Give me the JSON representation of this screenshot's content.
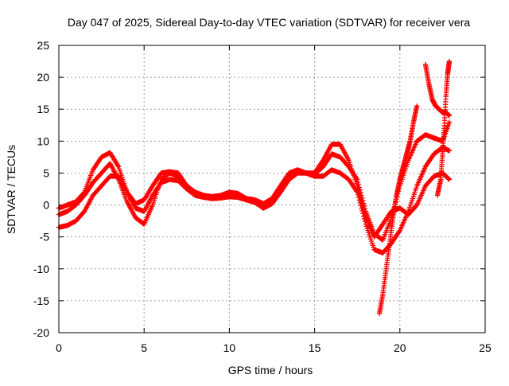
{
  "chart_data": {
    "type": "scatter",
    "title": "Day 047 of 2025, Sidereal Day-to-day VTEC variation (SDTVAR) for receiver vera",
    "xlabel": "GPS time / hours",
    "ylabel": "SDTVAR / TECUs",
    "xlim": [
      0,
      25
    ],
    "ylim": [
      -20,
      25
    ],
    "xticks": [
      0,
      5,
      10,
      15,
      20,
      25
    ],
    "yticks": [
      -20,
      -15,
      -10,
      -5,
      0,
      5,
      10,
      15,
      20,
      25
    ],
    "grid": true,
    "marker": "+",
    "color": "#ff0000",
    "series": [
      {
        "name": "trace-1",
        "x": [
          0.0,
          0.5,
          1.0,
          1.5,
          2.0,
          2.5,
          3.0,
          3.5,
          4.0,
          4.5,
          5.0,
          5.5,
          6.0,
          6.5,
          7.0,
          7.5,
          8.0,
          8.5,
          9.0,
          9.5,
          10.0,
          10.5,
          11.0,
          11.5,
          12.0,
          12.5,
          13.0,
          13.5,
          14.0,
          14.5,
          15.0,
          15.5,
          16.0,
          16.5,
          17.0,
          17.5,
          18.0,
          18.5,
          19.0,
          19.5,
          20.0,
          20.5,
          21.0,
          21.5,
          22.0,
          22.5,
          22.9
        ],
        "y": [
          -0.5,
          0.0,
          0.5,
          2.0,
          5.5,
          7.5,
          8.2,
          6.0,
          2.0,
          0.2,
          0.8,
          3.0,
          5.0,
          5.2,
          5.0,
          3.0,
          2.0,
          1.5,
          1.3,
          1.5,
          2.0,
          1.8,
          1.0,
          0.8,
          0.2,
          1.0,
          3.0,
          5.0,
          5.5,
          5.0,
          5.0,
          7.0,
          9.5,
          9.5,
          7.0,
          3.0,
          -2.0,
          -5.0,
          -3.0,
          -1.0,
          -0.5,
          -1.5,
          0.0,
          3.0,
          4.5,
          5.0,
          4.0
        ]
      },
      {
        "name": "trace-2",
        "x": [
          0.0,
          0.5,
          1.0,
          1.5,
          2.0,
          2.5,
          3.0,
          3.5,
          4.0,
          4.5,
          5.0,
          5.5,
          6.0,
          6.5,
          7.0,
          7.5,
          8.0,
          8.5,
          9.0,
          9.5,
          10.0,
          10.5,
          11.0,
          11.5,
          12.0,
          12.5,
          13.0,
          13.5,
          14.0,
          14.5,
          15.0,
          15.5,
          16.0,
          16.5,
          17.0,
          17.5,
          18.0,
          18.5,
          19.0,
          19.5,
          20.0,
          20.5,
          21.0,
          21.5,
          22.0,
          22.5,
          22.9
        ],
        "y": [
          -3.5,
          -3.2,
          -2.5,
          -1.0,
          1.5,
          3.0,
          4.5,
          4.5,
          2.0,
          -0.5,
          -1.0,
          1.5,
          3.5,
          4.0,
          3.8,
          2.5,
          1.5,
          1.2,
          1.0,
          1.1,
          1.3,
          1.2,
          0.8,
          0.4,
          -0.5,
          0.2,
          2.0,
          4.0,
          5.0,
          5.0,
          4.5,
          4.5,
          5.5,
          5.0,
          4.0,
          2.0,
          -3.0,
          -7.0,
          -7.5,
          -6.0,
          -4.0,
          -1.0,
          3.0,
          6.0,
          8.0,
          9.0,
          8.5
        ]
      },
      {
        "name": "trace-3",
        "x": [
          0.0,
          0.5,
          1.0,
          1.5,
          2.0,
          2.5,
          3.0,
          3.5,
          4.0,
          4.5,
          5.0,
          5.5,
          6.0,
          6.5,
          7.0,
          7.5,
          8.0,
          8.5,
          9.0,
          9.5,
          10.0,
          10.5,
          11.0,
          11.5,
          12.0,
          12.5,
          13.0,
          13.5,
          14.0,
          14.5,
          15.0,
          15.5,
          16.0,
          16.5,
          17.0,
          17.5,
          18.0,
          18.5,
          19.0,
          19.5,
          20.0,
          20.5,
          21.0,
          21.5,
          22.0,
          22.5,
          22.9
        ],
        "y": [
          -1.5,
          -1.0,
          0.0,
          1.5,
          3.5,
          5.0,
          6.5,
          4.0,
          0.5,
          -2.0,
          -3.0,
          0.0,
          4.0,
          5.0,
          4.5,
          3.0,
          1.8,
          1.4,
          1.2,
          1.3,
          1.6,
          1.5,
          0.9,
          0.6,
          0.0,
          0.6,
          2.5,
          4.5,
          5.2,
          5.0,
          4.8,
          6.0,
          8.0,
          7.5,
          6.0,
          4.0,
          -1.0,
          -4.5,
          -5.5,
          -2.0,
          3.0,
          7.0,
          10.0,
          11.0,
          10.5,
          10.0,
          13.0
        ]
      },
      {
        "name": "trace-4",
        "x": [
          18.8,
          19.0,
          19.2,
          19.4,
          19.6,
          19.8,
          20.0,
          20.2,
          20.4,
          20.6,
          20.8,
          21.0
        ],
        "y": [
          -17.0,
          -14.0,
          -10.0,
          -6.0,
          -2.0,
          1.5,
          4.0,
          6.0,
          8.0,
          10.0,
          13.0,
          15.5
        ]
      },
      {
        "name": "trace-5",
        "x": [
          21.5,
          21.7,
          21.9,
          22.1,
          22.3,
          22.5,
          22.7,
          22.9
        ],
        "y": [
          22.0,
          19.0,
          16.5,
          15.5,
          15.0,
          14.5,
          14.5,
          14.0
        ]
      },
      {
        "name": "trace-6",
        "x": [
          22.2,
          22.4,
          22.5,
          22.6,
          22.7,
          22.8,
          22.9
        ],
        "y": [
          1.5,
          4.0,
          8.0,
          12.0,
          17.0,
          20.5,
          22.5
        ]
      }
    ]
  }
}
